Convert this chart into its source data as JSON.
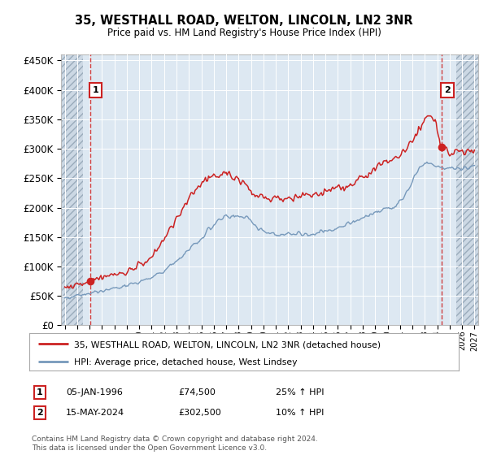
{
  "title": "35, WESTHALL ROAD, WELTON, LINCOLN, LN2 3NR",
  "subtitle": "Price paid vs. HM Land Registry's House Price Index (HPI)",
  "legend_label_red": "35, WESTHALL ROAD, WELTON, LINCOLN, LN2 3NR (detached house)",
  "legend_label_blue": "HPI: Average price, detached house, West Lindsey",
  "annotation1_date": "05-JAN-1996",
  "annotation1_price": "£74,500",
  "annotation1_hpi": "25% ↑ HPI",
  "annotation2_date": "15-MAY-2024",
  "annotation2_price": "£302,500",
  "annotation2_hpi": "10% ↑ HPI",
  "footer": "Contains HM Land Registry data © Crown copyright and database right 2024.\nThis data is licensed under the Open Government Licence v3.0.",
  "ylim": [
    0,
    460000
  ],
  "yticks": [
    0,
    50000,
    100000,
    150000,
    200000,
    250000,
    300000,
    350000,
    400000,
    450000
  ],
  "xlim_start": 1993.7,
  "xlim_end": 2027.3,
  "point1_x": 1996.03,
  "point1_y": 74500,
  "point2_x": 2024.37,
  "point2_y": 302500,
  "red_color": "#cc2222",
  "blue_color": "#7799bb",
  "bg_color": "#dde8f2",
  "grid_color": "#ffffff",
  "hatch_left_end": 1995.5,
  "hatch_right_start": 2025.5
}
